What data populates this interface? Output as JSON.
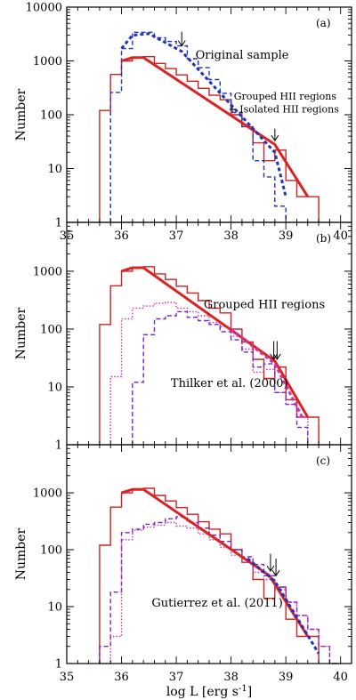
{
  "chart_data": [
    {
      "type": "line",
      "panel_label": "(a)",
      "ylabel": "Number",
      "yscale": "log",
      "ylim": [
        1,
        10000
      ],
      "xlim": [
        35,
        40.2
      ],
      "yticks": [
        {
          "v": 1,
          "label": "1"
        },
        {
          "v": 10,
          "label": "10"
        },
        {
          "v": 100,
          "label": "100"
        },
        {
          "v": 1000,
          "label": "1000"
        },
        {
          "v": 10000,
          "label": "10000"
        }
      ],
      "xticks": [
        {
          "v": 35,
          "label": "35"
        },
        {
          "v": 36,
          "label": "36"
        },
        {
          "v": 37,
          "label": "37"
        },
        {
          "v": 38,
          "label": "38"
        },
        {
          "v": 39,
          "label": "39"
        },
        {
          "v": 40,
          "label": "40"
        }
      ],
      "series": [
        {
          "style": "hist-solid",
          "color": "#cc2222",
          "bins": [
            35.6,
            35.8,
            36.0,
            36.2,
            36.4,
            36.6,
            36.8,
            37.0,
            37.2,
            37.4,
            37.6,
            37.8,
            38.0,
            38.2,
            38.4,
            38.6,
            38.8,
            39.0,
            39.2,
            39.4,
            39.6
          ],
          "counts": [
            120,
            560,
            1000,
            1150,
            1200,
            900,
            720,
            550,
            420,
            310,
            230,
            190,
            100,
            60,
            30,
            14,
            22,
            6,
            3,
            3
          ]
        },
        {
          "style": "hist-dashed",
          "color": "#2233bb",
          "bins": [
            35.8,
            36.0,
            36.2,
            36.4,
            36.6,
            36.8,
            37.0,
            37.2,
            37.4,
            37.6,
            37.8,
            38.0,
            38.2,
            38.4,
            38.6,
            38.8,
            39.0
          ],
          "counts": [
            260,
            1700,
            3400,
            3400,
            2700,
            2300,
            1900,
            1100,
            750,
            450,
            250,
            110,
            60,
            14,
            7,
            2
          ]
        },
        {
          "style": "fit-solid",
          "color": "#dd2222",
          "x": [
            36.0,
            36.2,
            36.4,
            38.8,
            39.4
          ],
          "y": [
            1000,
            1150,
            1150,
            28,
            3
          ]
        },
        {
          "style": "fit-dashed",
          "color": "#2233bb",
          "x": [
            36.0,
            36.2,
            36.5,
            37.1,
            38.8,
            39.0
          ],
          "y": [
            1700,
            3000,
            3200,
            1500,
            20,
            3
          ]
        }
      ],
      "arrows": [
        {
          "x": 37.1,
          "y_top": 3500,
          "y_tip": 1900
        },
        {
          "x": 38.8,
          "y_top": 55,
          "y_tip": 33
        }
      ],
      "annotations": [
        {
          "text": "Original sample",
          "x": 37.35,
          "y": 1100,
          "size": 13
        },
        {
          "text": "Grouped HII regions",
          "x": 38.05,
          "y": 190,
          "size": 11
        },
        {
          "text": "+ Isolated HII regions",
          "x": 37.95,
          "y": 110,
          "size": 11
        }
      ]
    },
    {
      "type": "line",
      "panel_label": "(b)",
      "ylabel": "Number",
      "yscale": "log",
      "ylim": [
        1,
        7000
      ],
      "xlim": [
        35,
        40.2
      ],
      "yticks": [
        {
          "v": 1,
          "label": "1"
        },
        {
          "v": 10,
          "label": "10"
        },
        {
          "v": 100,
          "label": "100"
        },
        {
          "v": 1000,
          "label": "1000"
        }
      ],
      "xticks": [
        {
          "v": 35,
          "label": ""
        },
        {
          "v": 36,
          "label": ""
        },
        {
          "v": 37,
          "label": ""
        },
        {
          "v": 38,
          "label": ""
        },
        {
          "v": 39,
          "label": ""
        },
        {
          "v": 40,
          "label": ""
        }
      ],
      "series": [
        {
          "style": "hist-solid",
          "color": "#cc2222",
          "bins": [
            35.6,
            35.8,
            36.0,
            36.2,
            36.4,
            36.6,
            36.8,
            37.0,
            37.2,
            37.4,
            37.6,
            37.8,
            38.0,
            38.2,
            38.4,
            38.6,
            38.8,
            39.0,
            39.2,
            39.4,
            39.6
          ],
          "counts": [
            120,
            560,
            1000,
            1150,
            1200,
            900,
            720,
            550,
            420,
            310,
            230,
            190,
            100,
            60,
            30,
            14,
            22,
            6,
            3,
            3
          ]
        },
        {
          "style": "hist-dotted",
          "color": "#cc33aa",
          "bins": [
            35.8,
            36.0,
            36.2,
            36.4,
            36.6,
            36.8,
            37.0,
            37.2,
            37.4,
            37.6,
            37.8,
            38.0,
            38.2,
            38.4,
            38.6,
            38.8,
            39.0,
            39.2,
            39.4
          ],
          "counts": [
            15,
            150,
            230,
            250,
            280,
            290,
            230,
            200,
            170,
            130,
            110,
            75,
            45,
            18,
            20,
            8,
            5,
            3
          ]
        },
        {
          "style": "hist-dashed",
          "color": "#7722cc",
          "bins": [
            36.2,
            36.4,
            36.6,
            36.8,
            37.0,
            37.2,
            37.4,
            37.6,
            37.8,
            38.0,
            38.2,
            38.4,
            38.6,
            38.8,
            39.0,
            39.2,
            39.4
          ],
          "counts": [
            12,
            80,
            150,
            170,
            200,
            160,
            140,
            120,
            90,
            65,
            40,
            22,
            25,
            8,
            5,
            2
          ]
        },
        {
          "style": "fit-solid",
          "color": "#dd2222",
          "x": [
            36.0,
            36.2,
            36.4,
            38.8,
            39.4
          ],
          "y": [
            1000,
            1150,
            1150,
            28,
            3
          ]
        },
        {
          "style": "fit-dashed",
          "color": "#cc33aa",
          "x": [
            38.0,
            38.8,
            39.3
          ],
          "y": [
            100,
            25,
            3
          ]
        }
      ],
      "arrows": [
        {
          "x": 38.78,
          "y_top": 62,
          "y_tip": 30
        },
        {
          "x": 38.84,
          "y_top": 62,
          "y_tip": 30
        }
      ],
      "annotations": [
        {
          "text": "Grouped HII regions",
          "x": 37.5,
          "y": 230,
          "size": 13
        },
        {
          "text": "Thilker et al. (2000)",
          "x": 36.9,
          "y": 10,
          "size": 13
        }
      ]
    },
    {
      "type": "line",
      "panel_label": "(c)",
      "ylabel": "Number",
      "xlabel": "log L [erg s",
      "xlabel_sup": "-1",
      "xlabel_end": "]",
      "yscale": "log",
      "ylim": [
        1,
        7000
      ],
      "xlim": [
        35,
        40.2
      ],
      "yticks": [
        {
          "v": 1,
          "label": "1"
        },
        {
          "v": 10,
          "label": "10"
        },
        {
          "v": 100,
          "label": "100"
        },
        {
          "v": 1000,
          "label": "1000"
        }
      ],
      "xticks": [
        {
          "v": 35,
          "label": "35"
        },
        {
          "v": 36,
          "label": "36"
        },
        {
          "v": 37,
          "label": "37"
        },
        {
          "v": 38,
          "label": "38"
        },
        {
          "v": 39,
          "label": "39"
        },
        {
          "v": 40,
          "label": "40"
        }
      ],
      "series": [
        {
          "style": "hist-solid",
          "color": "#cc2222",
          "bins": [
            35.6,
            35.8,
            36.0,
            36.2,
            36.4,
            36.6,
            36.8,
            37.0,
            37.2,
            37.4,
            37.6,
            37.8,
            38.0,
            38.2,
            38.4,
            38.6,
            38.8,
            39.0,
            39.2,
            39.4,
            39.6
          ],
          "counts": [
            120,
            560,
            1000,
            1150,
            1200,
            900,
            720,
            550,
            420,
            310,
            230,
            190,
            100,
            60,
            30,
            14,
            22,
            6,
            3,
            3
          ]
        },
        {
          "style": "hist-dashed",
          "color": "#7722cc",
          "bins": [
            35.6,
            35.8,
            36.0,
            36.2,
            36.4,
            36.6,
            36.8,
            37.0,
            37.2,
            37.4,
            37.6,
            37.8,
            38.0,
            38.2,
            38.4,
            38.6,
            38.8,
            39.0,
            39.2,
            39.4,
            39.6,
            39.8,
            40.0
          ],
          "counts": [
            2,
            18,
            200,
            230,
            280,
            300,
            350,
            380,
            300,
            240,
            180,
            140,
            100,
            75,
            55,
            35,
            22,
            12,
            7,
            4,
            2,
            1
          ]
        },
        {
          "style": "hist-dotted",
          "color": "#cc33aa",
          "bins": [
            35.6,
            35.8,
            36.0,
            36.2,
            36.4,
            36.6,
            36.8,
            37.0,
            37.2,
            37.4,
            37.6,
            37.8,
            38.0,
            38.2,
            38.4,
            38.6,
            38.8,
            39.0,
            39.2,
            39.4,
            39.6,
            39.8,
            40.0
          ],
          "counts": [
            1,
            3,
            150,
            220,
            250,
            270,
            300,
            260,
            240,
            190,
            150,
            110,
            80,
            60,
            40,
            30,
            20,
            12,
            7,
            4,
            2,
            1
          ]
        },
        {
          "style": "fit-solid",
          "color": "#dd2222",
          "x": [
            36.0,
            36.2,
            36.4,
            38.7,
            39.4
          ],
          "y": [
            1000,
            1150,
            1150,
            35,
            3
          ]
        },
        {
          "style": "fit-dashed",
          "color": "#2233bb",
          "x": [
            38.3,
            38.8,
            39.6
          ],
          "y": [
            70,
            28,
            1.5
          ]
        }
      ],
      "arrows": [
        {
          "x": 38.72,
          "y_top": 85,
          "y_tip": 42
        },
        {
          "x": 38.82,
          "y_top": 70,
          "y_tip": 35
        }
      ],
      "annotations": [
        {
          "text": "Gutierrez et al. (2011)",
          "x": 36.55,
          "y": 10,
          "size": 13
        }
      ]
    }
  ]
}
